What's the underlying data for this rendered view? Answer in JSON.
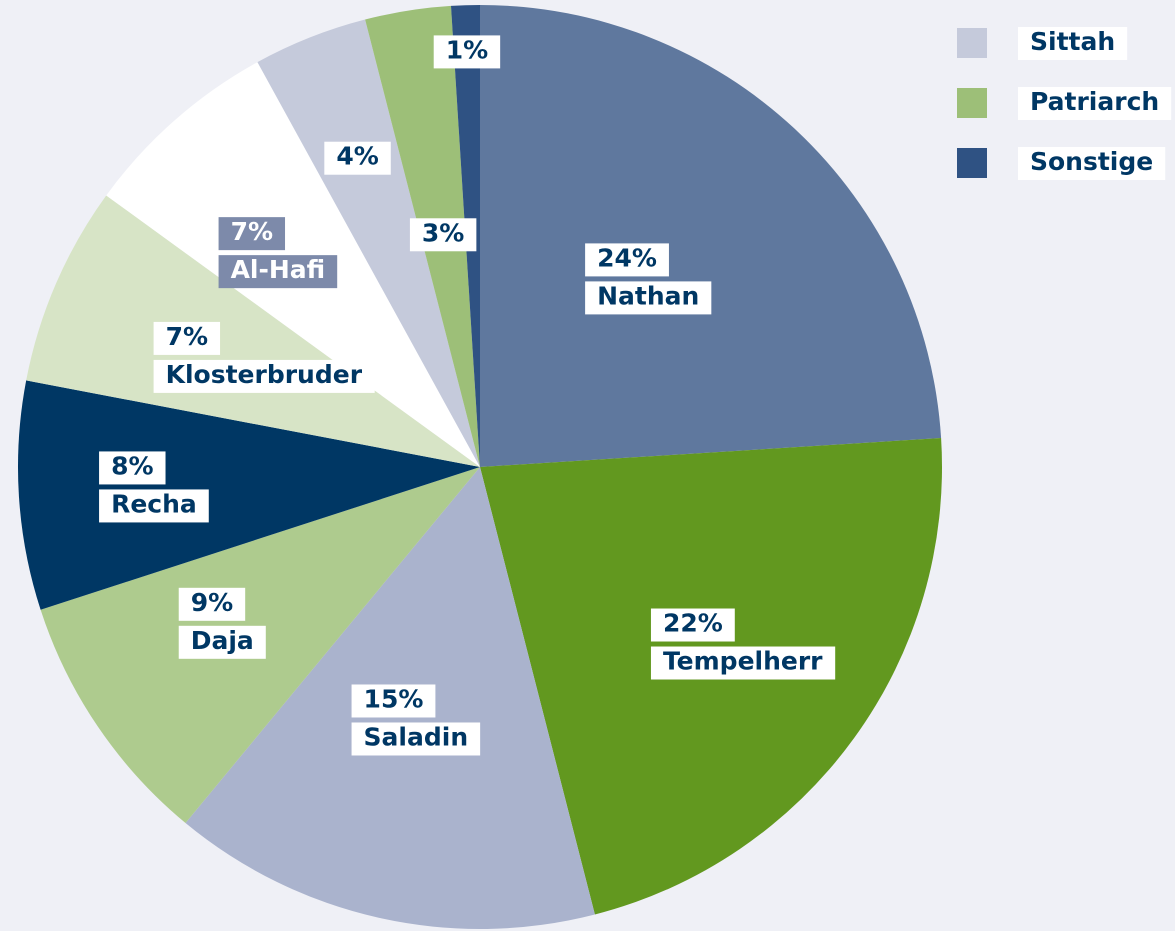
{
  "chart_data": {
    "type": "pie",
    "categories": [
      "Nathan",
      "Tempelherr",
      "Saladin",
      "Daja",
      "Recha",
      "Klosterbruder",
      "Al-Hafi",
      "Sittah",
      "Patriarch",
      "Sonstige"
    ],
    "values": [
      24,
      22,
      15,
      9,
      8,
      7,
      7,
      4,
      3,
      1
    ],
    "value_labels": [
      "24%",
      "22%",
      "15%",
      "9%",
      "8%",
      "7%",
      "7%",
      "4%",
      "3%",
      "1%"
    ],
    "colors": [
      "#5f789e",
      "#62981f",
      "#aab3cd",
      "#aecb8e",
      "#003764",
      "#d7e4c6",
      "#ffffff",
      "#c5cadb",
      "#9dbf78",
      "#2f5283"
    ],
    "in_legend": [
      false,
      false,
      false,
      false,
      false,
      false,
      false,
      true,
      true,
      true
    ],
    "legend": "top-right"
  }
}
